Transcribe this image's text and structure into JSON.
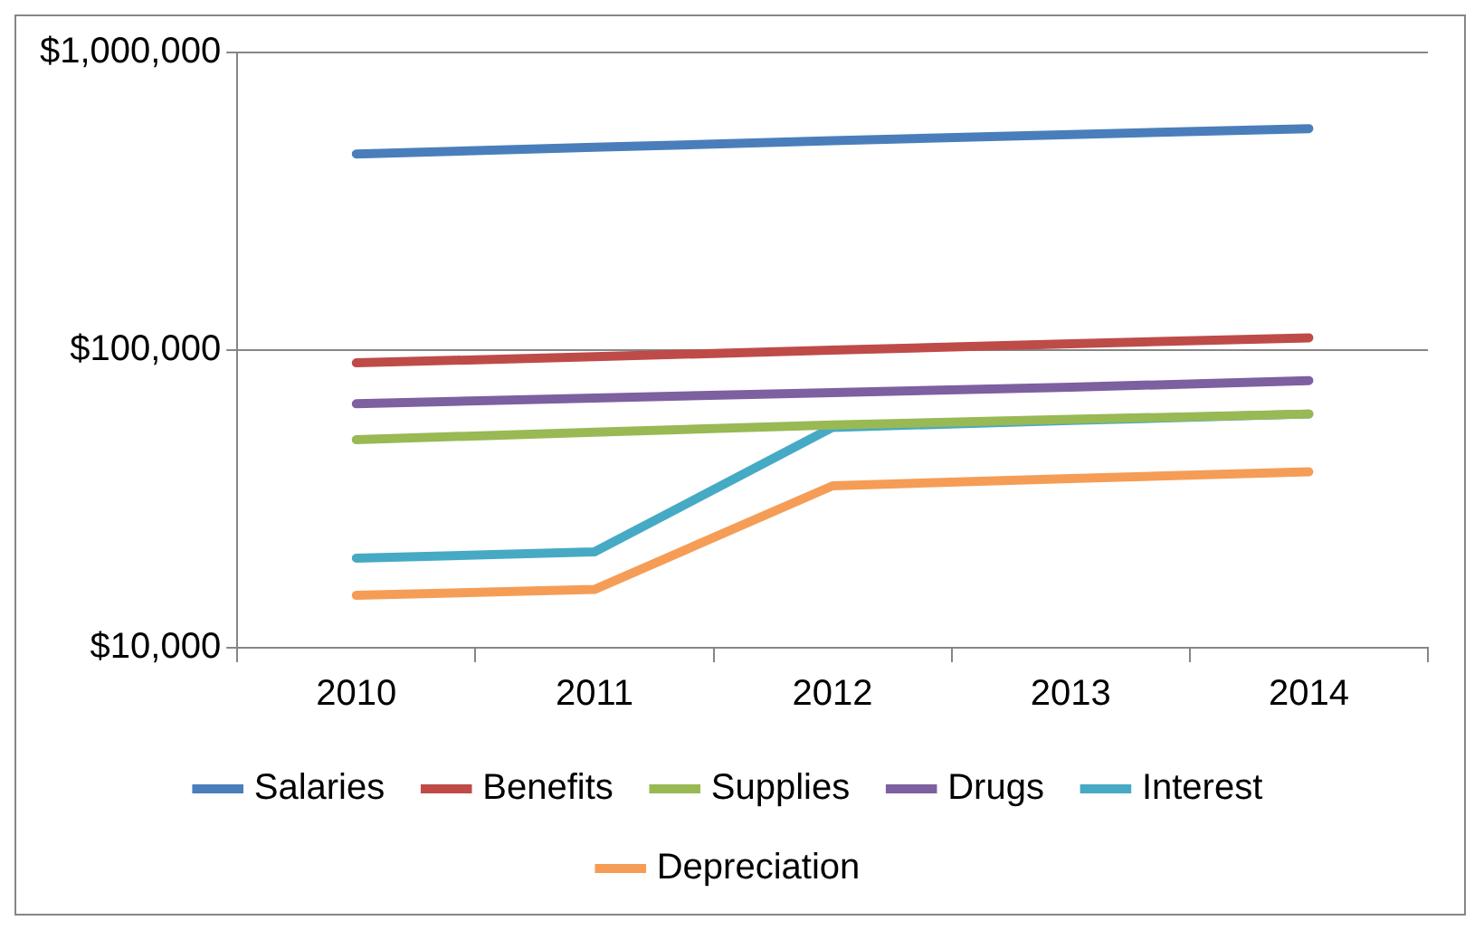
{
  "chart_data": {
    "type": "line",
    "categories": [
      "2010",
      "2011",
      "2012",
      "2013",
      "2014"
    ],
    "log": "y",
    "ylim": [
      10000,
      1000000
    ],
    "yticks": [
      {
        "value": 10000,
        "label": "$10,000"
      },
      {
        "value": 100000,
        "label": "$100,000"
      },
      {
        "value": 1000000,
        "label": "$1,000,000"
      }
    ],
    "grid": "y",
    "legend": "bottom",
    "marker": "none",
    "line_style": "solid",
    "series": [
      {
        "name": "Salaries",
        "color": "#4a7ebb",
        "values": [
          456000,
          480000,
          505000,
          530000,
          555000
        ]
      },
      {
        "name": "Benefits",
        "color": "#be4b48",
        "values": [
          90600,
          95000,
          100000,
          105000,
          110000
        ]
      },
      {
        "name": "Supplies",
        "color": "#98b954",
        "values": [
          50000,
          53000,
          56000,
          58500,
          61000
        ]
      },
      {
        "name": "Drugs",
        "color": "#7d60a0",
        "values": [
          66000,
          69000,
          72000,
          75000,
          79000
        ]
      },
      {
        "name": "Interest",
        "color": "#46aac5",
        "values": [
          20000,
          21000,
          55000,
          58000,
          61000
        ]
      },
      {
        "name": "Depreciation",
        "color": "#f59d56",
        "values": [
          15000,
          15700,
          35000,
          37000,
          39000
        ]
      }
    ]
  }
}
